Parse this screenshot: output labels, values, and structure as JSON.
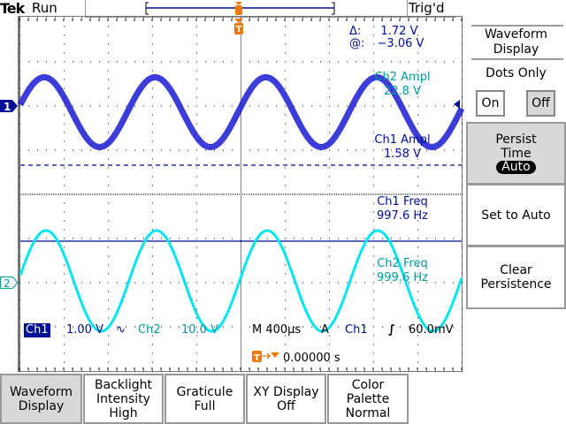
{
  "header": {
    "brand": "Tek",
    "state": "Run",
    "trigger_status": "Trig'd"
  },
  "readouts": {
    "cursor_delta": {
      "label": "Δ:",
      "value": "1.72 V"
    },
    "cursor_at": {
      "label": "@:",
      "value": "−3.06 V"
    },
    "ch2_ampl": {
      "label": "Ch2 Ampl",
      "value": "22.8 V"
    },
    "ch1_ampl": {
      "label": "Ch1 Ampl",
      "value": "1.58 V"
    },
    "ch1_freq": {
      "label": "Ch1 Freq",
      "value": "997.6 Hz"
    },
    "ch2_freq": {
      "label": "Ch2 Freq",
      "value": "999.6 Hz"
    }
  },
  "status": {
    "ch1": "Ch1",
    "ch1_scale": "1.00 V",
    "bw_icon": "∿",
    "ch2": "Ch2",
    "ch2_scale": "10.0 V",
    "timebase": "M 400µs",
    "trig_mode": "A",
    "trig_src": "Ch1",
    "trig_slope": "rising-edge-icon",
    "trig_slope_glyph": "∫",
    "trig_level": "60.0mV",
    "trig_pos": "0.00000 s"
  },
  "markers": {
    "ch1": "1",
    "ch2": "2",
    "trigger": "T"
  },
  "channels": [
    {
      "name": "Ch1",
      "color": "#1a1ad2",
      "freq_hz": 997.6,
      "volts_per_div": 1.0,
      "ampl_v": 1.58
    },
    {
      "name": "Ch2",
      "color": "#00e6f0",
      "freq_hz": 999.6,
      "volts_per_div": 10.0,
      "ampl_v": 22.8
    }
  ],
  "time_per_div_s": 0.0004,
  "colors": {
    "ch1": "#000f96",
    "ch2": "#009b9b",
    "trigger": "#f07800"
  },
  "side_menu": {
    "title": "Waveform Display",
    "dots_only": "Dots Only",
    "on": "On",
    "off": "Off",
    "dots_only_selected": "Off",
    "persist_label": "Persist Time",
    "persist_value": "Auto",
    "set_auto": "Set to Auto",
    "clear": "Clear Persistence"
  },
  "bottom_menu": [
    {
      "l1": "Waveform",
      "l2": "Display",
      "l3": ""
    },
    {
      "l1": "Backlight",
      "l2": "Intensity",
      "l3": "High"
    },
    {
      "l1": "Graticule",
      "l2": "Full",
      "l3": ""
    },
    {
      "l1": "XY Display",
      "l2": "Off",
      "l3": ""
    },
    {
      "l1": "Color",
      "l2": "Palette",
      "l3": "Normal"
    }
  ]
}
